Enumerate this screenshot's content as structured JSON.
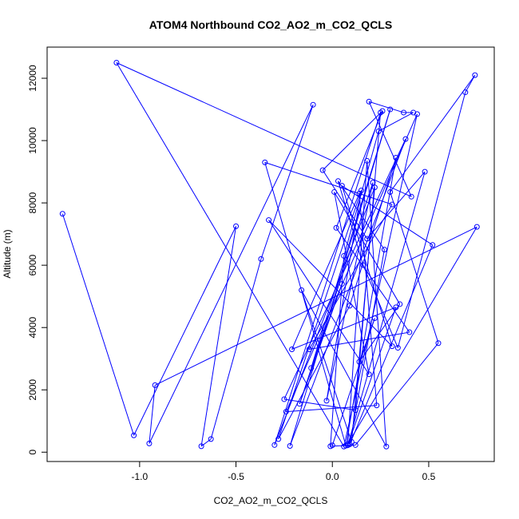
{
  "chart_data": {
    "type": "line",
    "title": "ATOM4 Northbound CO2_AO2_m_CO2_QCLS",
    "xlabel": "CO2_AO2_m_CO2_QCLS",
    "ylabel": "Altitude (m)",
    "xlim": [
      -1.48,
      0.84
    ],
    "ylim": [
      -300,
      13000
    ],
    "xticks": [
      -1.0,
      -0.5,
      0.0,
      0.5
    ],
    "xtick_labels": [
      "-1.0",
      "-0.5",
      "0.0",
      "0.5"
    ],
    "yticks": [
      0,
      2000,
      4000,
      6000,
      8000,
      10000,
      12000
    ],
    "ytick_labels": [
      "0",
      "2000",
      "4000",
      "6000",
      "8000",
      "10000",
      "12000"
    ],
    "grid": false,
    "series_color": "#0000ff",
    "marker": "open-circle",
    "series": [
      {
        "x": [
          -1.4,
          -1.03,
          -0.5,
          -0.68,
          -0.63,
          -0.37,
          -0.1,
          -0.95,
          -0.92,
          0.75,
          0.08,
          0.18,
          0.28,
          -0.16,
          0.1,
          0.22,
          -0.3,
          0.25,
          0.12,
          -0.25,
          0.38,
          -0.22,
          0.3,
          -0.11,
          0.05,
          -0.17,
          0.21,
          -0.03,
          0.15,
          -0.28,
          0.09,
          0.33,
          0.07,
          -0.35,
          0.31,
          -0.12,
          0.4,
          0.02,
          0.26,
          -0.05,
          0.18,
          0.48,
          0.08,
          0.33,
          -0.21,
          0.14,
          0.23,
          -0.24,
          0.44,
          0.06,
          -1.12,
          0.41,
          0.19,
          0.37,
          0.42,
          0.24,
          0.06,
          -0.01,
          0.12,
          0.55,
          0.3,
          0.74,
          0.69,
          0.34,
          0.16,
          0.03,
          0.27,
          0.09,
          0.52,
          0.05,
          0.31,
          -0.33,
          0.19,
          0.01,
          0.35,
          0.14,
          0.22,
          0.0
        ],
        "y": [
          7650,
          540,
          7250,
          190,
          420,
          6200,
          11150,
          280,
          2150,
          7230,
          260,
          9350,
          180,
          5200,
          330,
          8500,
          230,
          10900,
          1350,
          1700,
          10050,
          200,
          11000,
          2700,
          5400,
          1550,
          8650,
          1650,
          8400,
          420,
          4700,
          9450,
          210,
          9300,
          7950,
          3300,
          3850,
          7200,
          10950,
          9050,
          6850,
          9000,
          220,
          4650,
          3300,
          8300,
          1500,
          1300,
          10850,
          180,
          12500,
          8200,
          11250,
          10900,
          10900,
          10300,
          6300,
          190,
          230,
          3500,
          8350,
          12100,
          11550,
          3350,
          6000,
          8700,
          6500,
          250,
          6650,
          8550,
          3400,
          7450,
          2500,
          8350,
          4750,
          2900,
          4300,
          220
        ]
      }
    ]
  }
}
